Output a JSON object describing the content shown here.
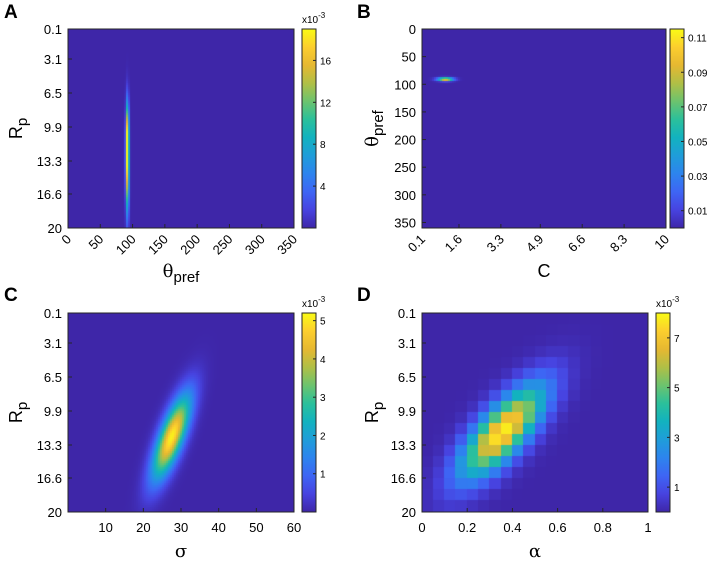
{
  "colormap": [
    "#3e26a8",
    "#4743e0",
    "#3e65f4",
    "#2d84ee",
    "#1f9dd9",
    "#12b2bf",
    "#2bc09b",
    "#6cc36e",
    "#b0bf46",
    "#e6b831",
    "#fcce2e",
    "#f9fb15"
  ],
  "chart_data": [
    {
      "panel": "A",
      "type": "heatmap",
      "xlabel_main": "θ",
      "xlabel_sub": "pref",
      "ylabel_main": "R",
      "ylabel_sub": "p",
      "xlim": [
        0,
        350
      ],
      "ylim": [
        0.1,
        20
      ],
      "y_reversed": true,
      "xticks": [
        0,
        50,
        100,
        150,
        200,
        250,
        300,
        350
      ],
      "xtick_labels": [
        "0",
        "50",
        "100",
        "150",
        "200",
        "250",
        "300",
        "350"
      ],
      "xtick_rotate": true,
      "yticks": [
        0.1,
        3.1,
        6.5,
        9.9,
        13.3,
        16.6,
        20
      ],
      "ytick_labels": [
        "0.1",
        "3.1",
        "6.5",
        "9.9",
        "13.3",
        "16.6",
        "20"
      ],
      "colorbar": {
        "scale_label": "x10",
        "scale_exp": "-3",
        "min": 0,
        "max": 19,
        "ticks": [
          4,
          8,
          12,
          16
        ],
        "tick_labels": [
          "4",
          "8",
          "12",
          "16"
        ]
      },
      "background": 0,
      "blobs": [
        {
          "x": 92,
          "y": 13.8,
          "sx": 1.8,
          "sy": 3.2,
          "peak": 18.5
        },
        {
          "x": 92,
          "y": 10.0,
          "sx": 1.6,
          "sy": 2.0,
          "peak": 10
        }
      ]
    },
    {
      "panel": "B",
      "type": "heatmap",
      "xlabel_main": "C",
      "xlabel_sub": "",
      "ylabel_main": "θ",
      "ylabel_sub": "pref",
      "xlim": [
        0.1,
        10
      ],
      "ylim": [
        0,
        360
      ],
      "y_reversed": true,
      "xticks": [
        0.1,
        1.6,
        3.3,
        4.9,
        6.6,
        8.3,
        10
      ],
      "xtick_labels": [
        "0.1",
        "1.6",
        "3.3",
        "4.9",
        "6.6",
        "8.3",
        "10"
      ],
      "xtick_rotate": true,
      "yticks": [
        0,
        50,
        100,
        150,
        200,
        250,
        300,
        350
      ],
      "ytick_labels": [
        "0",
        "50",
        "100",
        "150",
        "200",
        "250",
        "300",
        "350"
      ],
      "colorbar": {
        "scale_label": "",
        "scale_exp": "",
        "min": 0,
        "max": 0.115,
        "ticks": [
          0.01,
          0.03,
          0.05,
          0.07,
          0.09,
          0.11
        ],
        "tick_labels": [
          "0.01",
          "0.03",
          "0.05",
          "0.07",
          "0.09",
          "0.11"
        ]
      },
      "background": 0,
      "blobs": [
        {
          "x": 1.05,
          "y": 91,
          "sx": 0.22,
          "sy": 2.2,
          "peak": 0.112
        }
      ]
    },
    {
      "panel": "C",
      "type": "heatmap",
      "xlabel_main": "σ",
      "xlabel_sub": "",
      "ylabel_main": "R",
      "ylabel_sub": "p",
      "xlim": [
        0,
        60
      ],
      "ylim": [
        0.1,
        20
      ],
      "y_reversed": true,
      "xticks": [
        10,
        20,
        30,
        40,
        50,
        60
      ],
      "xtick_labels": [
        "10",
        "20",
        "30",
        "40",
        "50",
        "60"
      ],
      "xtick_rotate": false,
      "yticks": [
        0.1,
        3.1,
        6.5,
        9.9,
        13.3,
        16.6,
        20
      ],
      "ytick_labels": [
        "0.1",
        "3.1",
        "6.5",
        "9.9",
        "13.3",
        "16.6",
        "20"
      ],
      "colorbar": {
        "scale_label": "x10",
        "scale_exp": "-3",
        "min": 0,
        "max": 5.2,
        "ticks": [
          1,
          2,
          3,
          4,
          5
        ],
        "tick_labels": [
          "1",
          "2",
          "3",
          "4",
          "5"
        ]
      },
      "background": 0,
      "ridge": {
        "x0": 27.5,
        "y0": 12.5,
        "slope": -0.9,
        "sx": 2.3,
        "sy": 2.9,
        "peak": 5.1
      }
    },
    {
      "panel": "D",
      "type": "heatmap",
      "xlabel_main": "α",
      "xlabel_sub": "",
      "ylabel_main": "R",
      "ylabel_sub": "p",
      "xlim": [
        0,
        1
      ],
      "ylim": [
        0.1,
        20
      ],
      "y_reversed": true,
      "xticks": [
        0,
        0.2,
        0.4,
        0.6,
        0.8,
        1
      ],
      "xtick_labels": [
        "0",
        "0.2",
        "0.4",
        "0.6",
        "0.8",
        "1"
      ],
      "xtick_rotate": false,
      "yticks": [
        0.1,
        3.1,
        6.5,
        9.9,
        13.3,
        16.6,
        20
      ],
      "ytick_labels": [
        "0.1",
        "3.1",
        "6.5",
        "9.9",
        "13.3",
        "16.6",
        "20"
      ],
      "colorbar": {
        "scale_label": "x10",
        "scale_exp": "-3",
        "min": 0,
        "max": 8,
        "ticks": [
          1,
          3,
          5,
          7
        ],
        "tick_labels": [
          "1",
          "3",
          "5",
          "7"
        ]
      },
      "background": 0,
      "blocky": {
        "xbins": 20,
        "ybins": 18
      },
      "ridge": {
        "x0": 0.36,
        "y0": 12.0,
        "slope": -0.03,
        "sx": 0.085,
        "sy": 3.2,
        "peak": 7.8
      }
    }
  ]
}
